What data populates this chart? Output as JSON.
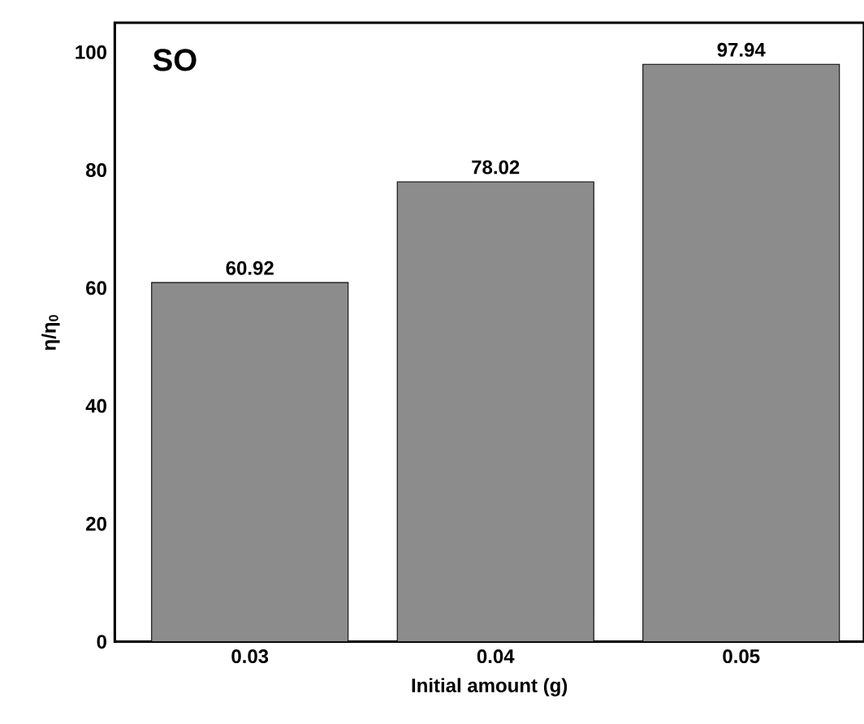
{
  "chart_data": {
    "type": "bar",
    "categories": [
      "0.03",
      "0.04",
      "0.05"
    ],
    "values": [
      60.92,
      78.02,
      97.94
    ],
    "color": "#8c8c8c",
    "data_labels": true,
    "xlabel": "Initial amount (g)",
    "ylabel": "η/η$_{0}$",
    "annotations": [
      "SO"
    ],
    "ylim": [
      0,
      105
    ],
    "yticks": [
      0,
      20,
      40,
      60,
      80,
      100
    ],
    "grid": false
  }
}
